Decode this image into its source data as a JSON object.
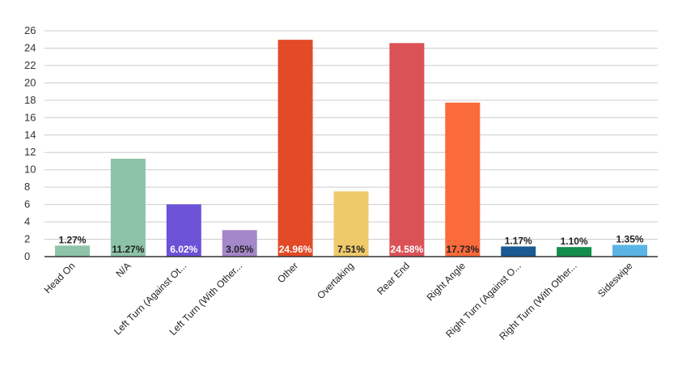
{
  "chart_data": {
    "type": "bar",
    "categories": [
      "Head On",
      "N/A",
      "Left Turn (Against Ot...",
      "Left Turn (With Other...",
      "Other",
      "Overtaking",
      "Rear End",
      "Right Angle",
      "Right Turn (Against O...",
      "Right Turn (With Other...",
      "Sideswipe"
    ],
    "values": [
      1.27,
      11.27,
      6.02,
      3.05,
      24.96,
      7.51,
      24.58,
      17.73,
      1.17,
      1.1,
      1.35
    ],
    "data_labels": [
      "1.27%",
      "11.27%",
      "6.02%",
      "3.05%",
      "24.96%",
      "7.51%",
      "24.58%",
      "17.73%",
      "1.17%",
      "1.10%",
      "1.35%"
    ],
    "colors": [
      "#8dc3a7",
      "#8dc3a7",
      "#6b52d6",
      "#a487c9",
      "#e34a27",
      "#efca6b",
      "#db5256",
      "#fb6a3a",
      "#1a5a92",
      "#138d4c",
      "#5ab4e5"
    ],
    "label_colors": [
      "#222222",
      "#222222",
      "#ffffff",
      "#222222",
      "#ffffff",
      "#222222",
      "#ffffff",
      "#222222",
      "#222222",
      "#222222",
      "#222222"
    ],
    "yticks": [
      0,
      2,
      4,
      6,
      8,
      10,
      12,
      14,
      16,
      18,
      20,
      22,
      24,
      26
    ],
    "ylim": [
      0,
      26
    ],
    "title": "",
    "xlabel": "",
    "ylabel": "",
    "grid": true,
    "legend": "none"
  }
}
